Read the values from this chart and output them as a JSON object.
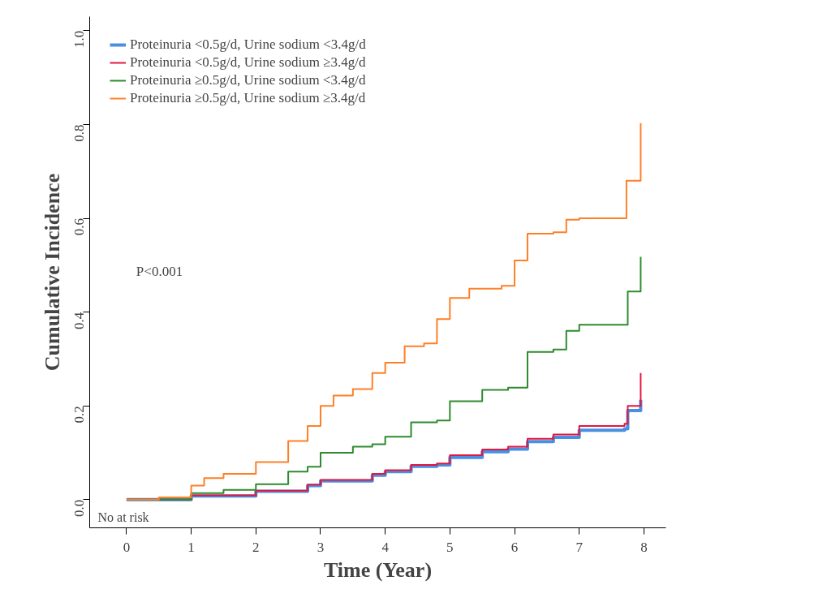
{
  "chart_data": {
    "type": "step",
    "xlabel": "Time (Year)",
    "ylabel": "Cumulative Incidence",
    "xlim": [
      -0.57,
      8.34
    ],
    "ylim": [
      -0.06,
      1.03
    ],
    "xticks": [
      0,
      1,
      2,
      3,
      4,
      5,
      6,
      7,
      8
    ],
    "yticks": [
      {
        "value": 0,
        "label": "0.0"
      },
      {
        "value": 0.2,
        "label": "0.2"
      },
      {
        "value": 0.4,
        "label": "0.4"
      },
      {
        "value": 0.6,
        "label": "0.6"
      },
      {
        "value": 0.8,
        "label": "0.8"
      },
      {
        "value": 1,
        "label": "1.0"
      }
    ],
    "grid": false,
    "legend": "top left",
    "annotations": [
      "P<0.001",
      "No at risk"
    ],
    "series": [
      {
        "name": "Proteinuria <0.5g/d, Urine sodium <3.4g/d",
        "color": "#4a90e2",
        "x": [
          0,
          1,
          2,
          2.8,
          3.0,
          3.8,
          4.0,
          4.4,
          4.8,
          5.0,
          5.5,
          5.9,
          6.2,
          6.6,
          7.0,
          7.7,
          7.75,
          7.95
        ],
        "values": [
          0,
          0.008,
          0.018,
          0.03,
          0.04,
          0.052,
          0.06,
          0.071,
          0.074,
          0.09,
          0.102,
          0.108,
          0.124,
          0.133,
          0.148,
          0.151,
          0.19,
          0.213
        ]
      },
      {
        "name": "Proteinuria <0.5g/d, Urine sodium ≥3.4g/d",
        "color": "#e3173e",
        "x": [
          0,
          1,
          2,
          2.8,
          3.0,
          3.8,
          4.0,
          4.4,
          4.8,
          5.0,
          5.5,
          5.9,
          6.2,
          6.6,
          7.0,
          7.7,
          7.75,
          7.95
        ],
        "values": [
          0,
          0.009,
          0.019,
          0.032,
          0.042,
          0.055,
          0.063,
          0.074,
          0.077,
          0.095,
          0.107,
          0.113,
          0.13,
          0.139,
          0.157,
          0.162,
          0.2,
          0.27
        ]
      },
      {
        "name": "Proteinuria ≥0.5g/d, Urine sodium <3.4g/d",
        "color": "#2e8b2e",
        "x": [
          0,
          1,
          1.5,
          2,
          2.5,
          2.8,
          3.0,
          3.5,
          3.8,
          4.0,
          4.4,
          4.8,
          5.0,
          5.5,
          5.9,
          6.2,
          6.6,
          6.8,
          7.0,
          7.75,
          7.95
        ],
        "values": [
          0,
          0.014,
          0.021,
          0.033,
          0.06,
          0.07,
          0.1,
          0.113,
          0.118,
          0.134,
          0.165,
          0.169,
          0.21,
          0.234,
          0.239,
          0.315,
          0.32,
          0.36,
          0.373,
          0.444,
          0.518
        ]
      },
      {
        "name": "Proteinuria ≥0.5g/d, Urine sodium ≥3.4g/d",
        "color": "#ff7f27",
        "x": [
          0,
          0.5,
          1,
          1.2,
          1.5,
          2,
          2.5,
          2.8,
          3.0,
          3.2,
          3.5,
          3.8,
          4.0,
          4.3,
          4.6,
          4.8,
          5.0,
          5.3,
          5.8,
          6.0,
          6.2,
          6.6,
          6.8,
          7.0,
          7.73,
          7.95
        ],
        "values": [
          0,
          0.005,
          0.03,
          0.046,
          0.055,
          0.08,
          0.125,
          0.157,
          0.2,
          0.222,
          0.236,
          0.27,
          0.292,
          0.327,
          0.333,
          0.385,
          0.43,
          0.45,
          0.456,
          0.51,
          0.567,
          0.57,
          0.597,
          0.6,
          0.68,
          0.803
        ]
      }
    ]
  }
}
